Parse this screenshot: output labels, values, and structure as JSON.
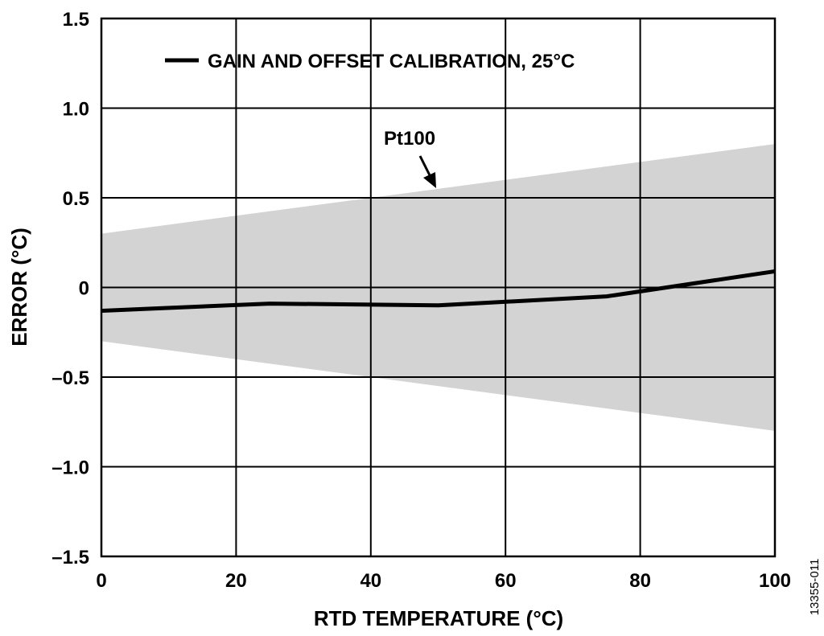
{
  "chart_data": {
    "type": "line",
    "title": "",
    "xlabel": "RTD TEMPERATURE (°C)",
    "ylabel": "ERROR (°C)",
    "xlim": [
      0,
      100
    ],
    "ylim": [
      -1.5,
      1.5
    ],
    "x_ticks": [
      0,
      20,
      40,
      60,
      80,
      100
    ],
    "x_tick_labels": [
      "0",
      "20",
      "40",
      "60",
      "80",
      "100"
    ],
    "y_ticks": [
      1.5,
      1.0,
      0.5,
      0,
      -0.5,
      -1.0,
      -1.5
    ],
    "y_tick_labels": [
      "1.5",
      "1.0",
      "0.5",
      "0",
      "–0.5",
      "–1.0",
      "–1.5"
    ],
    "grid": true,
    "legend_position": "top-left",
    "series": [
      {
        "name": "GAIN AND OFFSET CALIBRATION, 25°C",
        "color": "#000000",
        "x": [
          0,
          25,
          50,
          75,
          100
        ],
        "y": [
          -0.13,
          -0.09,
          -0.1,
          -0.05,
          0.09
        ]
      }
    ],
    "band": {
      "label": "Pt100",
      "color": "#d3d3d3",
      "x": [
        0,
        100
      ],
      "upper": [
        0.3,
        0.8
      ],
      "lower": [
        -0.3,
        -0.8
      ]
    },
    "annotations": [
      {
        "text": "Pt100",
        "points_to_x": 50,
        "points_to_y": 0.55
      }
    ],
    "figure_id": "13355-011"
  }
}
